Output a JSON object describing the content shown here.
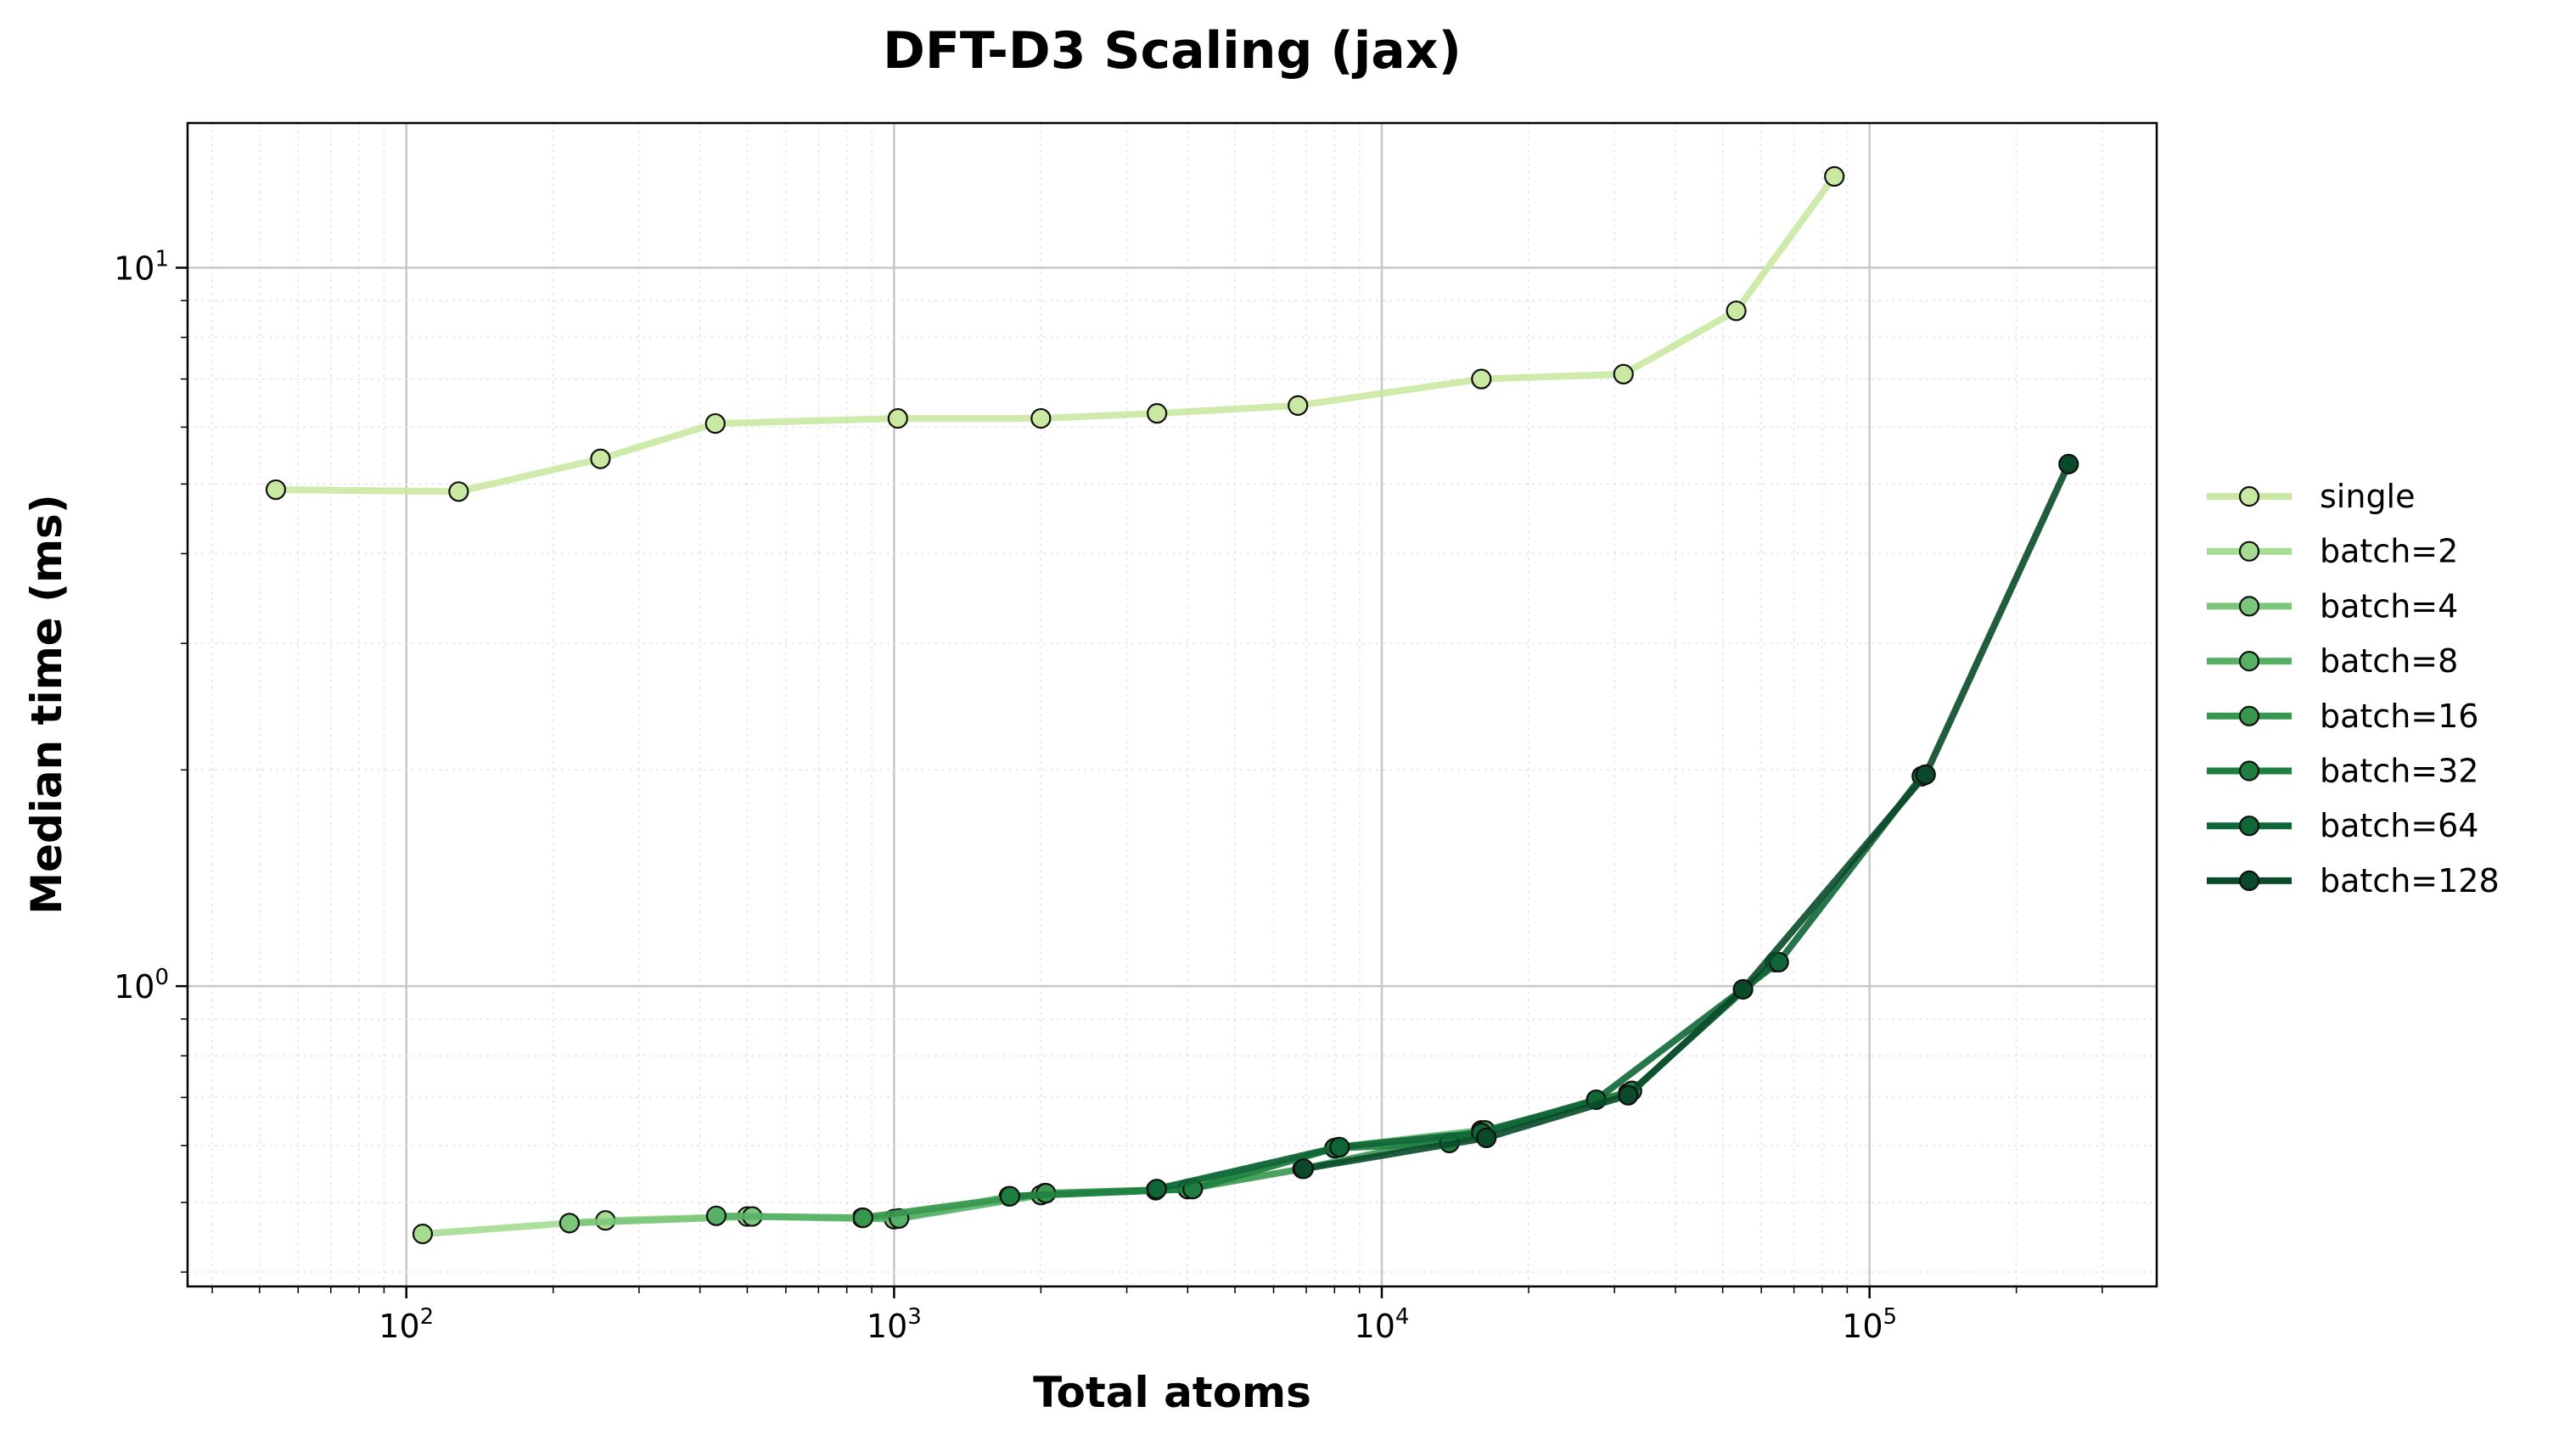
{
  "chart_data": {
    "type": "line",
    "title": "DFT-D3 Scaling (jax)",
    "xlabel": "Total atoms",
    "ylabel": "Median time (ms)",
    "xscale": "log",
    "yscale": "log",
    "xlim": [
      35.6,
      388000
    ],
    "ylim": [
      0.382,
      15.9
    ],
    "grid": true,
    "legend_position": "right-outside",
    "x_ticks": [
      {
        "value": 100,
        "base": "10",
        "exp": "2"
      },
      {
        "value": 1000,
        "base": "10",
        "exp": "3"
      },
      {
        "value": 10000,
        "base": "10",
        "exp": "4"
      },
      {
        "value": 100000,
        "base": "10",
        "exp": "5"
      }
    ],
    "y_ticks": [
      {
        "value": 1,
        "base": "10",
        "exp": "0"
      },
      {
        "value": 10,
        "base": "10",
        "exp": "1"
      }
    ],
    "series": [
      {
        "name": "single",
        "color": "#c9e9a2",
        "x": [
          54,
          128,
          250,
          430,
          1018,
          2000,
          3460,
          6730,
          16000,
          31300,
          53300,
          84700
        ],
        "y": [
          4.91,
          4.88,
          5.42,
          6.07,
          6.17,
          6.17,
          6.27,
          6.43,
          7.0,
          7.11,
          8.71,
          13.4
        ]
      },
      {
        "name": "batch=2",
        "color": "#a6db92",
        "x": [
          108,
          256,
          500,
          860,
          2036,
          4000
        ],
        "y": [
          0.452,
          0.472,
          0.478,
          0.476,
          0.515,
          0.522
        ]
      },
      {
        "name": "batch=4",
        "color": "#7cc67c",
        "x": [
          216,
          512,
          1000,
          1720,
          4072,
          8000
        ],
        "y": [
          0.468,
          0.478,
          0.474,
          0.51,
          0.522,
          0.595
        ]
      },
      {
        "name": "batch=8",
        "color": "#56b167",
        "x": [
          432,
          1024,
          2000,
          3440,
          8144,
          16000
        ],
        "y": [
          0.479,
          0.475,
          0.512,
          0.52,
          0.597,
          0.63
        ]
      },
      {
        "name": "batch=16",
        "color": "#37974f",
        "x": [
          864,
          2048,
          4000,
          6880,
          16288,
          32000
        ],
        "y": [
          0.476,
          0.515,
          0.522,
          0.557,
          0.63,
          0.71
        ]
      },
      {
        "name": "batch=32",
        "color": "#1f7f40",
        "x": [
          1728,
          4096,
          8000,
          13760,
          32576,
          64000
        ],
        "y": [
          0.51,
          0.522,
          0.595,
          0.605,
          0.715,
          1.08
        ]
      },
      {
        "name": "batch=64",
        "color": "#0f6636",
        "x": [
          3456,
          8192,
          16000,
          27520,
          65152,
          128000
        ],
        "y": [
          0.522,
          0.597,
          0.625,
          0.695,
          1.08,
          1.96
        ]
      },
      {
        "name": "batch=128",
        "color": "#0a4a2a",
        "x": [
          6912,
          16384,
          32000,
          55040,
          130304,
          256000
        ],
        "y": [
          0.557,
          0.615,
          0.705,
          0.99,
          1.97,
          5.33
        ]
      }
    ]
  }
}
